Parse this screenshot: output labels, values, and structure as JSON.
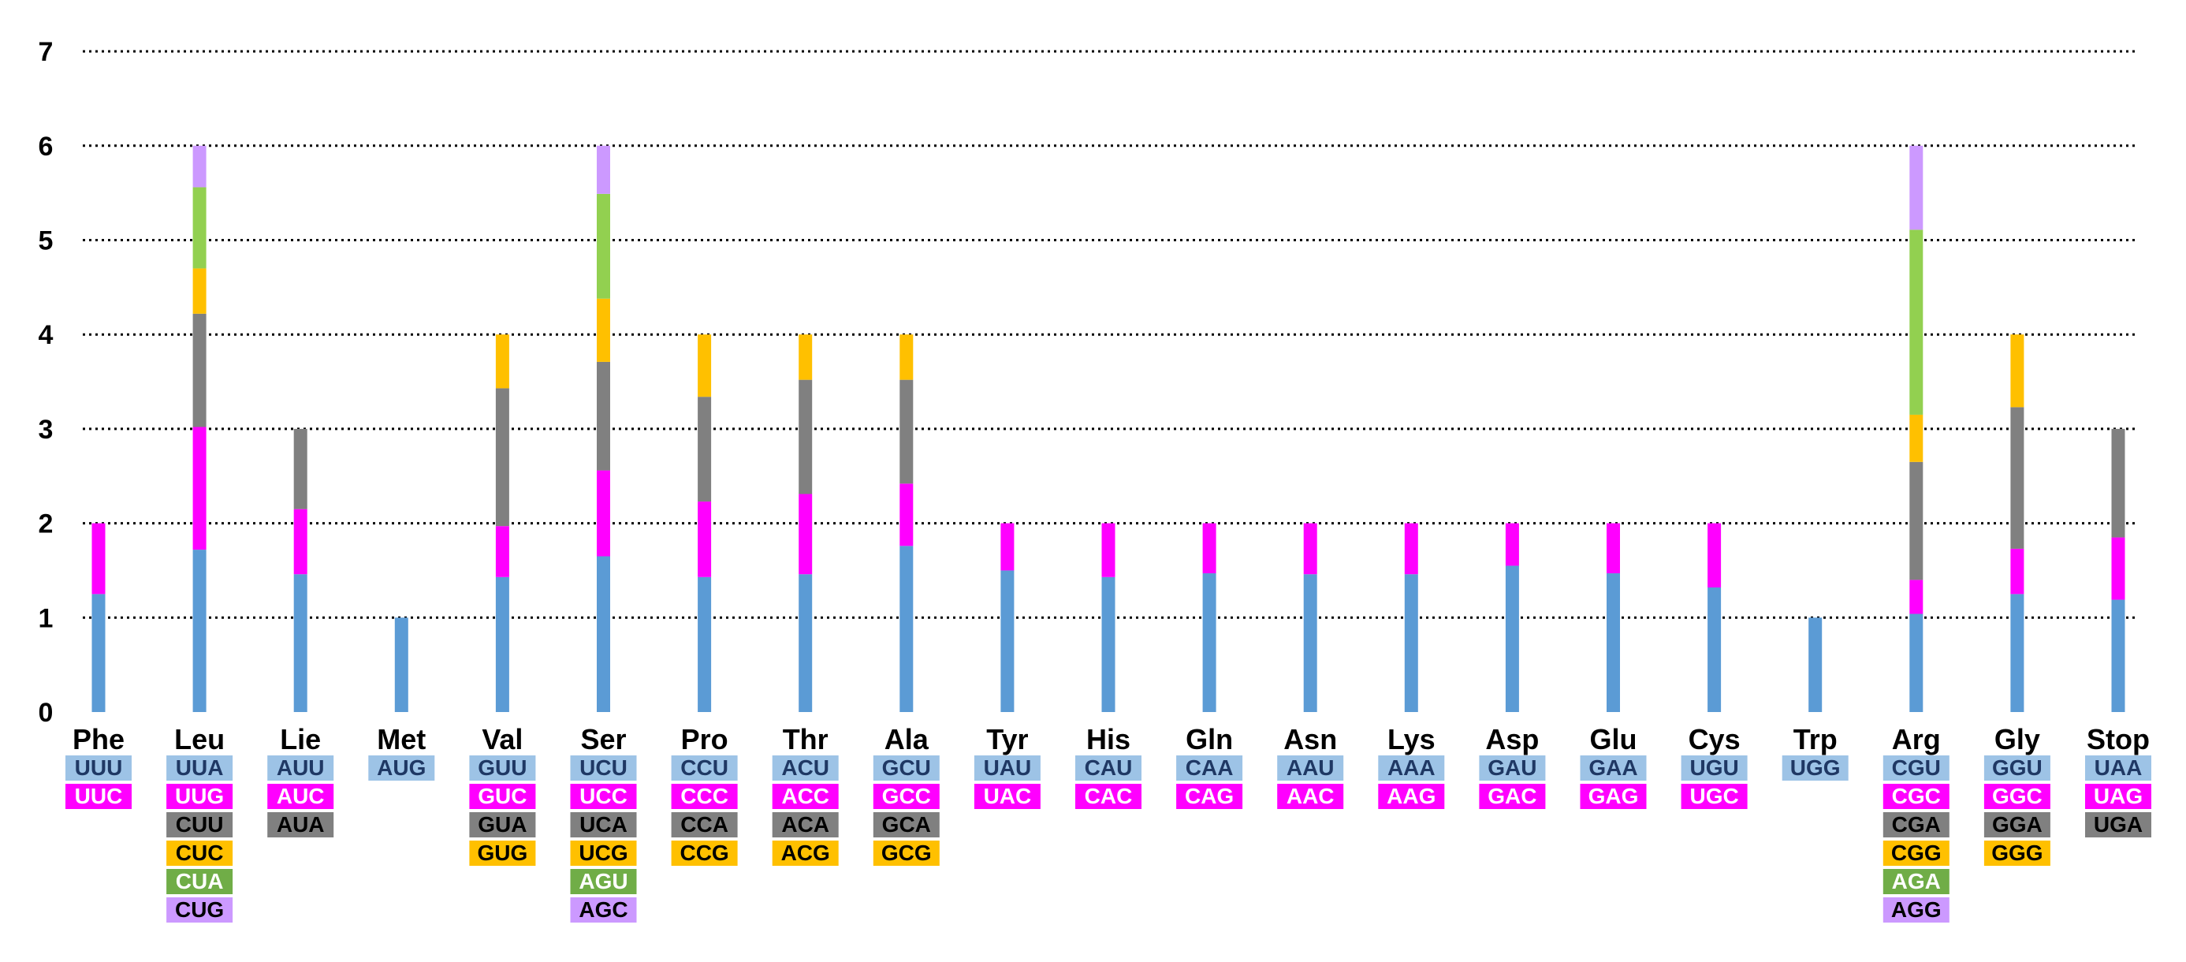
{
  "chart_data": {
    "type": "bar",
    "stacked": true,
    "title": "",
    "xlabel": "",
    "ylabel": "",
    "ylim": [
      0,
      7
    ],
    "yticks": [
      "0",
      "1",
      "2",
      "3",
      "4",
      "5",
      "6",
      "7"
    ],
    "grid": "dotted horizontal",
    "legend": "codon labels stacked under each bar",
    "categories": [
      {
        "amino_acid": "Phe",
        "codons": [
          {
            "codon": "UUU",
            "value": 1.25
          },
          {
            "codon": "UUC",
            "value": 0.75
          }
        ]
      },
      {
        "amino_acid": "Leu",
        "codons": [
          {
            "codon": "UUA",
            "value": 1.72
          },
          {
            "codon": "UUG",
            "value": 1.3
          },
          {
            "codon": "CUU",
            "value": 1.2
          },
          {
            "codon": "CUC",
            "value": 0.48
          },
          {
            "codon": "CUA",
            "value": 0.86
          },
          {
            "codon": "CUG",
            "value": 0.44
          }
        ]
      },
      {
        "amino_acid": "Lie",
        "codons": [
          {
            "codon": "AUU",
            "value": 1.46
          },
          {
            "codon": "AUC",
            "value": 0.69
          },
          {
            "codon": "AUA",
            "value": 0.85
          }
        ]
      },
      {
        "amino_acid": "Met",
        "codons": [
          {
            "codon": "AUG",
            "value": 1.0
          }
        ]
      },
      {
        "amino_acid": "Val",
        "codons": [
          {
            "codon": "GUU",
            "value": 1.43
          },
          {
            "codon": "GUC",
            "value": 0.54
          },
          {
            "codon": "GUA",
            "value": 1.46
          },
          {
            "codon": "GUG",
            "value": 0.57
          }
        ]
      },
      {
        "amino_acid": "Ser",
        "codons": [
          {
            "codon": "UCU",
            "value": 1.65
          },
          {
            "codon": "UCC",
            "value": 0.91
          },
          {
            "codon": "UCA",
            "value": 1.15
          },
          {
            "codon": "UCG",
            "value": 0.67
          },
          {
            "codon": "AGU",
            "value": 1.11
          },
          {
            "codon": "AGC",
            "value": 0.51
          }
        ]
      },
      {
        "amino_acid": "Pro",
        "codons": [
          {
            "codon": "CCU",
            "value": 1.43
          },
          {
            "codon": "CCC",
            "value": 0.8
          },
          {
            "codon": "CCA",
            "value": 1.11
          },
          {
            "codon": "CCG",
            "value": 0.66
          }
        ]
      },
      {
        "amino_acid": "Thr",
        "codons": [
          {
            "codon": "ACU",
            "value": 1.46
          },
          {
            "codon": "ACC",
            "value": 0.85
          },
          {
            "codon": "ACA",
            "value": 1.21
          },
          {
            "codon": "ACG",
            "value": 0.48
          }
        ]
      },
      {
        "amino_acid": "Ala",
        "codons": [
          {
            "codon": "GCU",
            "value": 1.76
          },
          {
            "codon": "GCC",
            "value": 0.66
          },
          {
            "codon": "GCA",
            "value": 1.1
          },
          {
            "codon": "GCG",
            "value": 0.48
          }
        ]
      },
      {
        "amino_acid": "Tyr",
        "codons": [
          {
            "codon": "UAU",
            "value": 1.5
          },
          {
            "codon": "UAC",
            "value": 0.5
          }
        ]
      },
      {
        "amino_acid": "His",
        "codons": [
          {
            "codon": "CAU",
            "value": 1.43
          },
          {
            "codon": "CAC",
            "value": 0.57
          }
        ]
      },
      {
        "amino_acid": "Gln",
        "codons": [
          {
            "codon": "CAA",
            "value": 1.47
          },
          {
            "codon": "CAG",
            "value": 0.53
          }
        ]
      },
      {
        "amino_acid": "Asn",
        "codons": [
          {
            "codon": "AAU",
            "value": 1.46
          },
          {
            "codon": "AAC",
            "value": 0.54
          }
        ]
      },
      {
        "amino_acid": "Lys",
        "codons": [
          {
            "codon": "AAA",
            "value": 1.46
          },
          {
            "codon": "AAG",
            "value": 0.54
          }
        ]
      },
      {
        "amino_acid": "Asp",
        "codons": [
          {
            "codon": "GAU",
            "value": 1.55
          },
          {
            "codon": "GAC",
            "value": 0.45
          }
        ]
      },
      {
        "amino_acid": "Glu",
        "codons": [
          {
            "codon": "GAA",
            "value": 1.47
          },
          {
            "codon": "GAG",
            "value": 0.53
          }
        ]
      },
      {
        "amino_acid": "Cys",
        "codons": [
          {
            "codon": "UGU",
            "value": 1.32
          },
          {
            "codon": "UGC",
            "value": 0.68
          }
        ]
      },
      {
        "amino_acid": "Trp",
        "codons": [
          {
            "codon": "UGG",
            "value": 1.0
          }
        ]
      },
      {
        "amino_acid": "Arg",
        "codons": [
          {
            "codon": "CGU",
            "value": 1.04
          },
          {
            "codon": "CGC",
            "value": 0.36
          },
          {
            "codon": "CGA",
            "value": 1.25
          },
          {
            "codon": "CGG",
            "value": 0.5
          },
          {
            "codon": "AGA",
            "value": 1.96
          },
          {
            "codon": "AGG",
            "value": 0.89
          }
        ]
      },
      {
        "amino_acid": "Gly",
        "codons": [
          {
            "codon": "GGU",
            "value": 1.25
          },
          {
            "codon": "GGC",
            "value": 0.48
          },
          {
            "codon": "GGA",
            "value": 1.5
          },
          {
            "codon": "GGG",
            "value": 0.77
          }
        ]
      },
      {
        "amino_acid": "Stop",
        "codons": [
          {
            "codon": "UAA",
            "value": 1.19
          },
          {
            "codon": "UAG",
            "value": 0.66
          },
          {
            "codon": "UGA",
            "value": 1.15
          }
        ]
      }
    ],
    "segment_colors": [
      "#5b9bd5",
      "#ff00ff",
      "#808080",
      "#ffc000",
      "#92d050",
      "#cc99ff"
    ],
    "codon_label_backgrounds": [
      "#9dc3e6",
      "#ff00ff",
      "#808080",
      "#ffc000",
      "#70ad47",
      "#cc99ff"
    ],
    "codon_label_text_colors": [
      "#1f3864",
      "#ffffff",
      "#000000",
      "#000000",
      "#ffffff",
      "#000000"
    ]
  }
}
